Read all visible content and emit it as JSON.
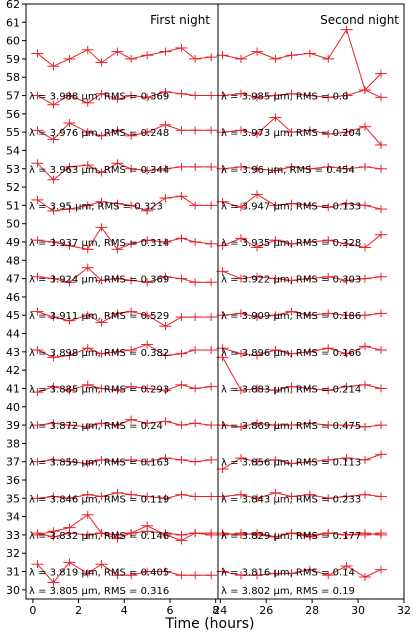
{
  "chart_data": {
    "type": "line",
    "xlabel": "Time (hours)",
    "ylim": [
      29.5,
      62.0
    ],
    "y_ticks": [
      30,
      31,
      32,
      33,
      34,
      35,
      36,
      37,
      38,
      39,
      40,
      41,
      42,
      43,
      44,
      45,
      46,
      47,
      48,
      49,
      50,
      51,
      52,
      53,
      54,
      55,
      56,
      57,
      58,
      59,
      60,
      61,
      62
    ],
    "panels": [
      {
        "title": "First night",
        "xlim": [
          -0.3,
          8.1
        ],
        "x_ticks": [
          0,
          2,
          4,
          6,
          8
        ],
        "x": [
          0.2,
          0.9,
          1.6,
          2.4,
          3.0,
          3.7,
          4.3,
          5.0,
          5.8,
          6.5,
          7.1,
          7.8
        ]
      },
      {
        "title": "Second night",
        "xlim": [
          23.9,
          32.0
        ],
        "x_ticks": [
          24,
          26,
          28,
          30,
          32
        ],
        "x": [
          24.1,
          24.9,
          25.6,
          26.4,
          27.1,
          27.9,
          28.7,
          29.5,
          30.3,
          31.0
        ]
      }
    ],
    "series": [
      {
        "first": [
          31.4,
          30.4,
          31.5,
          30.9,
          31.4,
          30.8,
          30.8,
          31.0,
          31.0,
          30.8,
          30.8,
          30.8
        ],
        "second": [
          31.0,
          30.8,
          30.8,
          30.9,
          30.9,
          31.1,
          30.8,
          31.3,
          30.7,
          31.1
        ],
        "first_label": "λ = 3.805 μm, RMS = 0.316",
        "second_label": "λ = 3.802 μm, RMS = 0.19"
      },
      {
        "first": [
          33.1,
          32.9,
          33.1,
          33.0,
          33.1,
          32.8,
          33.1,
          33.5,
          33.0,
          32.7,
          33.1,
          33.0
        ],
        "second": [
          33.0,
          33.1,
          33.0,
          32.9,
          33.1,
          32.9,
          33.1,
          33.0,
          33.0,
          33.1
        ],
        "first_label": "λ = 3.819 μm, RMS = 0.405",
        "second_label": "λ = 3.816 μm, RMS = 0.14"
      },
      {
        "first": [
          33.0,
          33.2,
          33.4,
          34.1,
          33.1,
          33.0,
          33.1,
          33.2,
          33.1,
          33.0,
          33.1,
          33.1
        ],
        "second": [
          33.1,
          33.0,
          33.1,
          32.9,
          33.1,
          33.0,
          33.1,
          33.0,
          33.1,
          33.0
        ],
        "first_label": "λ = 3.832 μm, RMS = 0.146",
        "second_label": "λ = 3.829 μm, RMS = 0.177"
      },
      {
        "first": [
          35.0,
          35.1,
          35.0,
          35.2,
          35.1,
          35.3,
          35.2,
          35.1,
          35.0,
          35.2,
          35.1,
          35.1
        ],
        "second": [
          35.1,
          35.2,
          35.0,
          35.3,
          35.1,
          35.2,
          35.0,
          35.1,
          35.2,
          35.1
        ],
        "first_label": "λ = 3.846 μm, RMS = 0.119",
        "second_label": "λ = 3.843 μm, RMS = 0.233"
      },
      {
        "first": [
          37.0,
          37.1,
          37.0,
          36.9,
          37.1,
          37.0,
          37.1,
          37.0,
          37.2,
          37.1,
          37.0,
          37.1
        ],
        "second": [
          36.6,
          37.2,
          37.0,
          37.1,
          36.9,
          37.0,
          37.1,
          37.2,
          37.1,
          37.4
        ],
        "first_label": "λ = 3.859 μm, RMS = 0.163",
        "second_label": "λ = 3.856 μm, RMS = 0.113"
      },
      {
        "first": [
          39.0,
          39.1,
          39.0,
          38.9,
          39.1,
          39.0,
          39.3,
          39.1,
          39.2,
          39.0,
          39.1,
          39.0
        ],
        "second": [
          39.0,
          38.9,
          39.1,
          39.0,
          39.0,
          39.1,
          39.0,
          39.0,
          38.9,
          39.0
        ],
        "first_label": "λ = 3.872 μm, RMS = 0.24",
        "second_label": "λ = 3.869 μm, RMS = 0.475"
      },
      {
        "first": [
          40.8,
          41.1,
          40.9,
          41.2,
          41.0,
          40.9,
          41.1,
          41.0,
          40.9,
          41.2,
          41.0,
          41.1
        ],
        "second": [
          42.7,
          40.9,
          41.0,
          40.9,
          41.1,
          41.0,
          40.9,
          41.1,
          41.2,
          41.0
        ],
        "first_label": "λ = 3.885 μm, RMS = 0.293",
        "second_label": "λ = 3.883 μm, RMS = 0.214"
      },
      {
        "first": [
          43.1,
          42.7,
          42.8,
          43.2,
          42.9,
          43.0,
          43.1,
          43.4,
          42.8,
          42.9,
          43.1,
          43.1
        ],
        "second": [
          43.2,
          42.9,
          42.8,
          43.1,
          42.9,
          43.0,
          43.2,
          42.9,
          43.3,
          43.1
        ],
        "first_label": "λ = 3.898 μm, RMS = 0.382",
        "second_label": "λ = 3.896 μm, RMS = 0.166"
      },
      {
        "first": [
          45.2,
          44.9,
          44.7,
          45.0,
          44.6,
          45.1,
          45.2,
          45.0,
          44.4,
          44.9,
          44.9,
          44.9
        ],
        "second": [
          45.0,
          45.1,
          44.9,
          45.0,
          45.2,
          45.0,
          45.1,
          45.0,
          45.0,
          45.1
        ],
        "first_label": "λ = 3.911 μm, RMS = 0.529",
        "second_label": "λ = 3.909 μm, RMS = 0.186"
      },
      {
        "first": [
          47.1,
          47.0,
          46.8,
          47.6,
          46.9,
          47.0,
          46.9,
          46.8,
          47.1,
          47.0,
          46.8,
          46.8
        ],
        "second": [
          47.4,
          47.0,
          47.1,
          47.0,
          46.9,
          47.0,
          47.1,
          46.9,
          47.0,
          47.1
        ],
        "first_label": "λ = 3.924 μm, RMS = 0.369",
        "second_label": "λ = 3.922 μm, RMS = 0.303"
      },
      {
        "first": [
          49.1,
          49.0,
          48.8,
          48.6,
          49.8,
          48.6,
          48.9,
          49.1,
          49.0,
          49.2,
          49.0,
          48.9
        ],
        "second": [
          48.8,
          49.2,
          48.7,
          49.1,
          48.9,
          49.0,
          49.1,
          48.9,
          48.7,
          49.4
        ],
        "first_label": "λ = 3.937 μm, RMS = 0.314",
        "second_label": "λ = 3.935 μm, RMS = 0.328"
      },
      {
        "first": [
          51.3,
          50.7,
          50.8,
          51.0,
          51.2,
          51.1,
          51.0,
          50.7,
          51.4,
          51.5,
          51.0,
          51.0
        ],
        "second": [
          51.2,
          50.9,
          51.6,
          51.0,
          51.1,
          51.0,
          50.9,
          51.1,
          51.0,
          50.8
        ],
        "first_label": "λ = 3.95 μm, RMS = 0.323",
        "second_label": "λ = 3.947 μm, RMS = 0.133"
      },
      {
        "first": [
          53.3,
          52.4,
          53.1,
          53.2,
          52.8,
          53.3,
          53.0,
          52.9,
          53.0,
          53.1,
          53.1,
          53.1
        ],
        "second": [
          53.0,
          53.1,
          53.0,
          52.9,
          53.1,
          53.0,
          53.1,
          53.0,
          53.1,
          53.0
        ],
        "first_label": "λ = 3.963 μm, RMS = 0.344",
        "second_label": "λ = 3.96 μm, RMS = 0.454"
      },
      {
        "first": [
          55.1,
          54.6,
          55.5,
          55.0,
          54.8,
          55.1,
          54.8,
          55.0,
          55.4,
          55.1,
          55.1,
          55.1
        ],
        "second": [
          55.0,
          55.1,
          54.9,
          55.8,
          55.0,
          55.1,
          54.9,
          55.0,
          55.3,
          54.3
        ],
        "first_label": "λ = 3.976 μm, RMS = 0.248",
        "second_label": "λ = 3.973 μm, RMS = 0.204"
      },
      {
        "first": [
          57.0,
          56.5,
          57.0,
          56.6,
          57.1,
          56.8,
          57.0,
          56.9,
          57.2,
          57.1,
          57.0,
          57.0
        ],
        "second": [
          57.0,
          57.1,
          56.9,
          57.0,
          57.1,
          57.0,
          56.9,
          57.0,
          57.3,
          56.9
        ],
        "first_label": "λ = 3.988 μm, RMS = 0.369",
        "second_label": "λ = 3.985 μm, RMS = 0.8"
      },
      {
        "first": [
          59.3,
          58.6,
          59.0,
          59.5,
          58.8,
          59.4,
          59.0,
          59.2,
          59.4,
          59.6,
          59.0,
          59.1
        ],
        "second": [
          59.2,
          59.0,
          59.4,
          59.0,
          59.2,
          59.3,
          59.0,
          60.6,
          57.3,
          58.2
        ],
        "first_label": "",
        "second_label": ""
      }
    ]
  }
}
